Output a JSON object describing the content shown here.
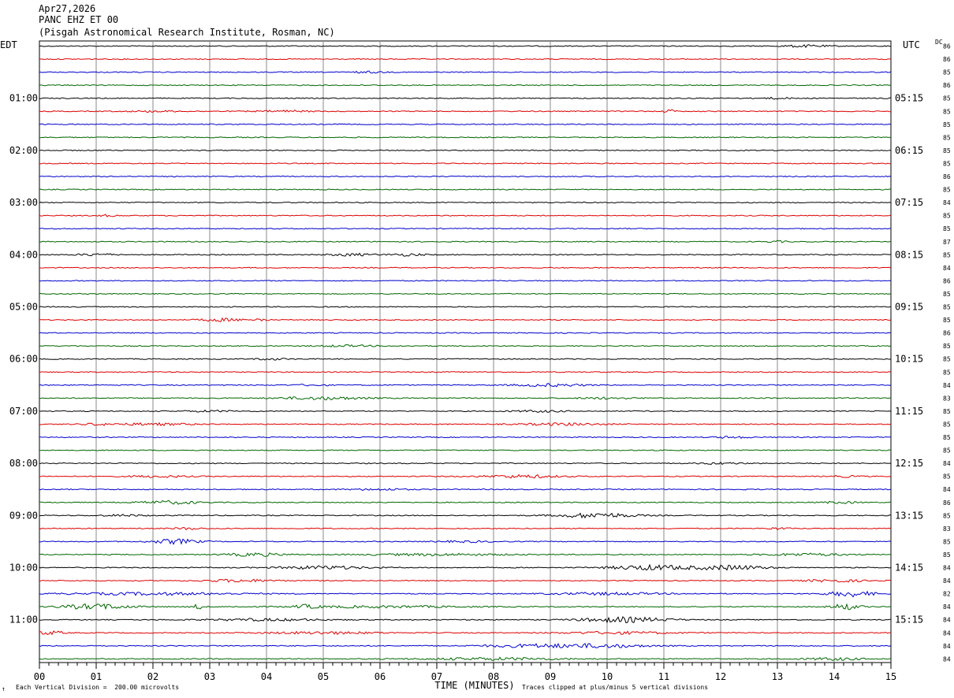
{
  "header": {
    "date": "Apr27,2026",
    "station": "PANC EHZ ET 00",
    "location": "(Pisgah Astronomical Research Institute, Rosman, NC)"
  },
  "labels": {
    "left_tz": "EDT",
    "right_tz": "UTC",
    "dc": "DC",
    "footer_left": "Each Vertical Division =  200.00 microvolts",
    "footer_right": "Traces clipped at plus/minus 5 vertical divisions",
    "mark": "↑"
  },
  "colors": {
    "trace": [
      "#000000",
      "#dd0000",
      "#0000cc",
      "#006600"
    ],
    "grid": "#888888"
  },
  "chart_data": {
    "type": "line",
    "xlabel": "TIME (MINUTES)",
    "xlim": [
      0,
      15
    ],
    "x_ticks": [
      "00",
      "01",
      "02",
      "03",
      "04",
      "05",
      "06",
      "07",
      "08",
      "09",
      "10",
      "11",
      "12",
      "13",
      "14",
      "15"
    ],
    "left_hour_labels": [
      "01:00",
      "02:00",
      "03:00",
      "04:00",
      "05:00",
      "06:00",
      "07:00",
      "08:00",
      "09:00",
      "10:00",
      "11:00"
    ],
    "right_hour_labels": [
      "05:15",
      "06:15",
      "07:15",
      "08:15",
      "09:15",
      "10:15",
      "11:15",
      "12:15",
      "13:15",
      "14:15",
      "15:15"
    ],
    "dc_offsets": [
      "86",
      "86",
      "85",
      "86",
      "85",
      "85",
      "85",
      "85",
      "85",
      "85",
      "86",
      "85",
      "84",
      "85",
      "85",
      "87",
      "85",
      "84",
      "86",
      "85",
      "85",
      "85",
      "86",
      "85",
      "85",
      "85",
      "84",
      "83",
      "85",
      "85",
      "85",
      "85",
      "84",
      "85",
      "84",
      "86",
      "85",
      "83",
      "85",
      "85",
      "84",
      "84",
      "82",
      "84",
      "84",
      "84",
      "84",
      "84"
    ],
    "activity": [
      [
        [
          13.5,
          0.8,
          1.2
        ]
      ],
      [],
      [
        [
          5.8,
          0.5,
          1.0
        ]
      ],
      [],
      [
        [
          13.0,
          0.6,
          0.8
        ]
      ],
      [
        [
          2.0,
          1.0,
          0.8
        ],
        [
          4.3,
          1.0,
          1.0
        ],
        [
          11.1,
          0.2,
          2.0
        ]
      ],
      [],
      [],
      [],
      [],
      [],
      [],
      [],
      [
        [
          1.2,
          0.4,
          0.8
        ]
      ],
      [],
      [
        [
          13.0,
          0.3,
          1.2
        ]
      ],
      [
        [
          1.0,
          0.6,
          1.4
        ],
        [
          5.5,
          0.8,
          1.4
        ],
        [
          6.5,
          0.6,
          1.4
        ]
      ],
      [],
      [],
      [],
      [],
      [
        [
          3.2,
          0.8,
          1.8
        ],
        [
          3.9,
          0.2,
          2.0
        ]
      ],
      [],
      [
        [
          5.4,
          1.0,
          1.0
        ]
      ],
      [
        [
          4.1,
          0.6,
          1.0
        ]
      ],
      [],
      [
        [
          9.0,
          1.2,
          1.6
        ],
        [
          4.8,
          0.6,
          0.8
        ]
      ],
      [
        [
          5.0,
          1.5,
          1.8
        ],
        [
          10.0,
          1.0,
          1.0
        ]
      ],
      [
        [
          3.0,
          1.0,
          0.8
        ],
        [
          8.8,
          1.0,
          1.0
        ]
      ],
      [
        [
          2.0,
          1.4,
          1.3
        ],
        [
          9.2,
          1.4,
          1.4
        ],
        [
          1.0,
          0.5,
          1.0
        ]
      ],
      [
        [
          12.2,
          0.6,
          1.2
        ]
      ],
      [],
      [
        [
          12.0,
          0.8,
          1.0
        ]
      ],
      [
        [
          2.1,
          1.0,
          1.2
        ],
        [
          8.5,
          1.4,
          1.8
        ],
        [
          14.2,
          0.6,
          1.0
        ]
      ],
      [
        [
          6.0,
          1.0,
          1.0
        ]
      ],
      [
        [
          2.3,
          1.0,
          2.0
        ],
        [
          14.1,
          0.6,
          1.2
        ]
      ],
      [
        [
          9.8,
          1.3,
          3.0
        ],
        [
          1.5,
          0.8,
          1.0
        ]
      ],
      [
        [
          2.6,
          0.5,
          1.2
        ],
        [
          13.0,
          0.4,
          1.2
        ]
      ],
      [
        [
          2.4,
          0.8,
          3.0
        ],
        [
          7.5,
          1.0,
          1.0
        ]
      ],
      [
        [
          3.8,
          1.0,
          2.0
        ],
        [
          7.0,
          2.5,
          1.2
        ],
        [
          13.5,
          1.5,
          1.4
        ]
      ],
      [
        [
          5.0,
          1.5,
          2.0
        ],
        [
          10.8,
          1.5,
          3.0
        ],
        [
          12.2,
          1.2,
          2.8
        ]
      ],
      [
        [
          3.5,
          1.2,
          1.6
        ],
        [
          14.0,
          1.0,
          1.6
        ]
      ],
      [
        [
          2.0,
          3.0,
          1.5
        ],
        [
          14.3,
          0.8,
          3.5
        ],
        [
          10.0,
          2.0,
          1.4
        ]
      ],
      [
        [
          1.0,
          1.2,
          3.2
        ],
        [
          2.8,
          0.2,
          3.0
        ],
        [
          4.7,
          0.4,
          2.0
        ],
        [
          14.2,
          0.5,
          3.5
        ],
        [
          6.0,
          3.0,
          1.2
        ]
      ],
      [
        [
          10.3,
          1.5,
          3.2
        ],
        [
          4.0,
          2.0,
          1.3
        ]
      ],
      [
        [
          0.2,
          0.5,
          2.2
        ],
        [
          5.0,
          2.0,
          1.4
        ],
        [
          10.2,
          2.0,
          1.4
        ]
      ],
      [
        [
          8.8,
          2.0,
          2.0
        ],
        [
          10.0,
          1.5,
          1.8
        ]
      ],
      [
        [
          8.0,
          2.5,
          1.5
        ],
        [
          14.0,
          1.0,
          1.5
        ]
      ]
    ]
  }
}
